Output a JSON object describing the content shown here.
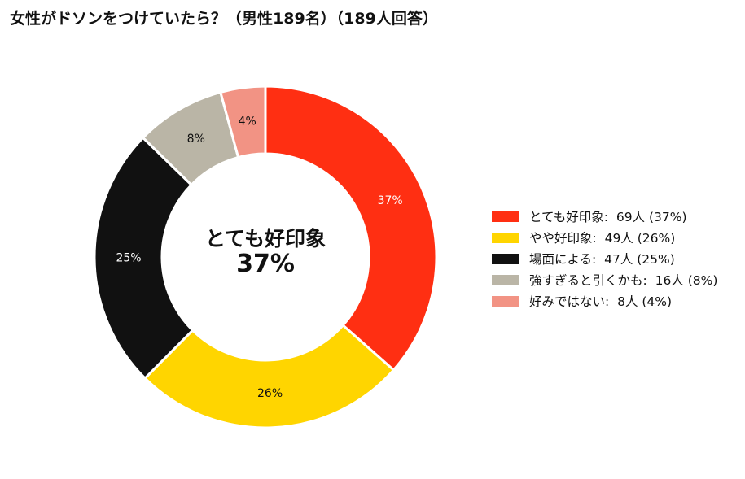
{
  "chart_data": {
    "type": "pie",
    "style": "donut",
    "title": "女性がドソンをつけていたら？（男性189名）（189人回答）",
    "center": {
      "label": "とても好印象",
      "value": "37%"
    },
    "slices": [
      {
        "label": "とても好印象",
        "count": 69,
        "percent": 37,
        "percent_label": "37%",
        "legend": "とても好印象:  69人 (37%)",
        "color": "#ff2f12",
        "label_color": "#ffffff"
      },
      {
        "label": "やや好印象",
        "count": 49,
        "percent": 26,
        "percent_label": "26%",
        "legend": "やや好印象:  49人 (26%)",
        "color": "#ffd500",
        "label_color": "#111111"
      },
      {
        "label": "場面による",
        "count": 47,
        "percent": 25,
        "percent_label": "25%",
        "legend": "場面による:  47人 (25%)",
        "color": "#111111",
        "label_color": "#ffffff"
      },
      {
        "label": "強すぎると引くかも",
        "count": 16,
        "percent": 8,
        "percent_label": "8%",
        "legend": "強すぎると引くかも:  16人 (8%)",
        "color": "#bab5a6",
        "label_color": "#111111"
      },
      {
        "label": "好みではない",
        "count": 8,
        "percent": 4,
        "percent_label": "4%",
        "legend": "好みではない:  8人 (4%)",
        "color": "#f29384",
        "label_color": "#111111"
      }
    ],
    "legend_position": "right",
    "start_angle": "top",
    "direction": "clockwise"
  }
}
